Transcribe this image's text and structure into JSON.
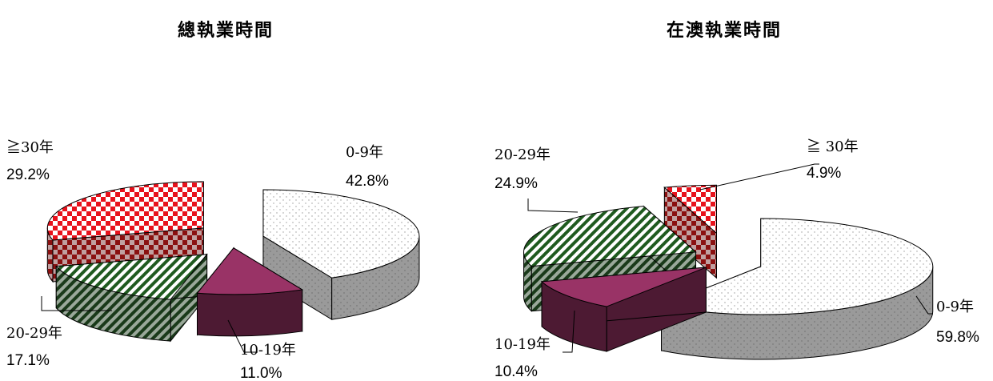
{
  "chart_data": [
    {
      "type": "pie",
      "style": "3d-exploded",
      "title": "總執業時間",
      "categories": [
        "0-9年",
        "10-19年",
        "20-29年",
        "≧30年"
      ],
      "values": [
        42.8,
        11.0,
        17.1,
        29.2
      ],
      "value_labels": [
        "42.8%",
        "11.0%",
        "17.1%",
        "29.2%"
      ]
    },
    {
      "type": "pie",
      "style": "3d-exploded",
      "title": "在澳執業時間",
      "categories": [
        "0-9年",
        "10-19年",
        "20-29年",
        "≧ 30年"
      ],
      "values": [
        59.8,
        10.4,
        24.9,
        4.9
      ],
      "value_labels": [
        "59.8%",
        "10.4%",
        "24.9%",
        "4.9%"
      ]
    }
  ],
  "colors": {
    "slice_0_9": "#ffffff",
    "slice_0_9_side": "#9a9a9a",
    "slice_10_19": "#993366",
    "slice_10_19_side": "#4d1a33",
    "slice_20_29": "#1f5a1f",
    "slice_30": "#e8121c"
  }
}
